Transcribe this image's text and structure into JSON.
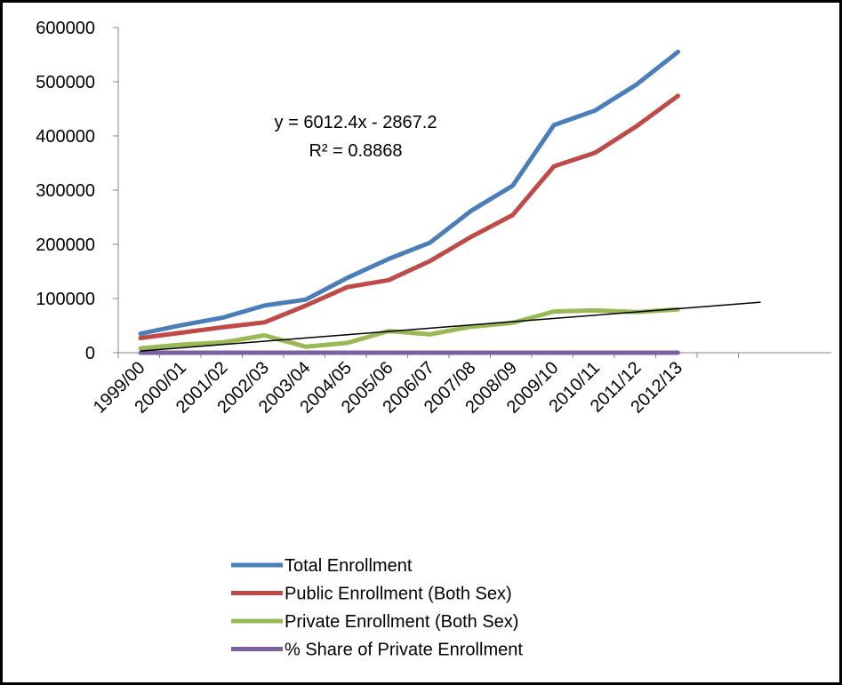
{
  "chart_data": {
    "type": "line",
    "title": "",
    "xlabel": "",
    "ylabel": "",
    "categories": [
      "1999/00",
      "2000/01",
      "2001/02",
      "2002/03",
      "2003/04",
      "2004/05",
      "2005/06",
      "2006/07",
      "2007/08",
      "2008/09",
      "2009/10",
      "2010/11",
      "2011/12",
      "2012/13"
    ],
    "ylim": [
      0,
      600000
    ],
    "yticks": [
      "0",
      "100000",
      "200000",
      "300000",
      "400000",
      "500000",
      "600000"
    ],
    "grid": false,
    "legend_position": "bottom",
    "series": [
      {
        "name": "Total Enrollment",
        "color": "#4a7ebb",
        "values": [
          35000,
          51000,
          65000,
          87000,
          98000,
          138000,
          173000,
          203000,
          262000,
          308000,
          420000,
          447000,
          495000,
          555000
        ]
      },
      {
        "name": "Public Enrollment (Both Sex)",
        "color": "#be4b48",
        "values": [
          27000,
          37000,
          47000,
          56000,
          87000,
          121000,
          134000,
          169000,
          214000,
          254000,
          344000,
          369000,
          418000,
          474000
        ]
      },
      {
        "name": "Private Enrollment (Both Sex)",
        "color": "#98b954",
        "values": [
          8000,
          15000,
          19000,
          32000,
          11000,
          18000,
          40000,
          34000,
          48000,
          55000,
          76000,
          78000,
          75000,
          80000
        ]
      },
      {
        "name": "% Share of Private Enrollment",
        "color": "#7d60a0",
        "values": [
          23,
          29,
          29,
          36,
          11,
          13,
          23,
          17,
          18,
          18,
          18,
          17,
          15,
          14
        ]
      }
    ],
    "trendline": {
      "slope": 6012.4,
      "intercept": -2867.2,
      "x_start": 1,
      "x_end": 16,
      "color": "#000000",
      "equation_label": "y = 6012.4x - 2867.2",
      "r2_label": "R² = 0.8868"
    }
  }
}
